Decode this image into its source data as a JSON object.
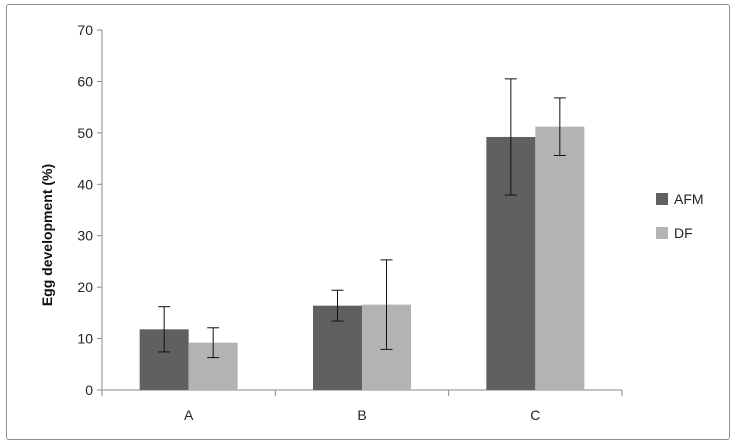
{
  "chart_data": {
    "type": "bar",
    "categories": [
      "A",
      "B",
      "C"
    ],
    "series": [
      {
        "name": "AFM",
        "values": [
          11.8,
          16.4,
          49.2
        ],
        "errors": [
          4.4,
          3.0,
          11.3
        ],
        "color": "#606060"
      },
      {
        "name": "DF",
        "values": [
          9.2,
          16.6,
          51.2
        ],
        "errors": [
          2.9,
          8.7,
          5.6
        ],
        "color": "#b3b3b3"
      }
    ],
    "title": "",
    "xlabel": "",
    "ylabel": "Egg development (%)",
    "ylim": [
      0,
      70
    ],
    "yticks": [
      "0",
      "10",
      "20",
      "30",
      "40",
      "50",
      "60",
      "70"
    ],
    "grid": false,
    "legend_position": "right"
  }
}
